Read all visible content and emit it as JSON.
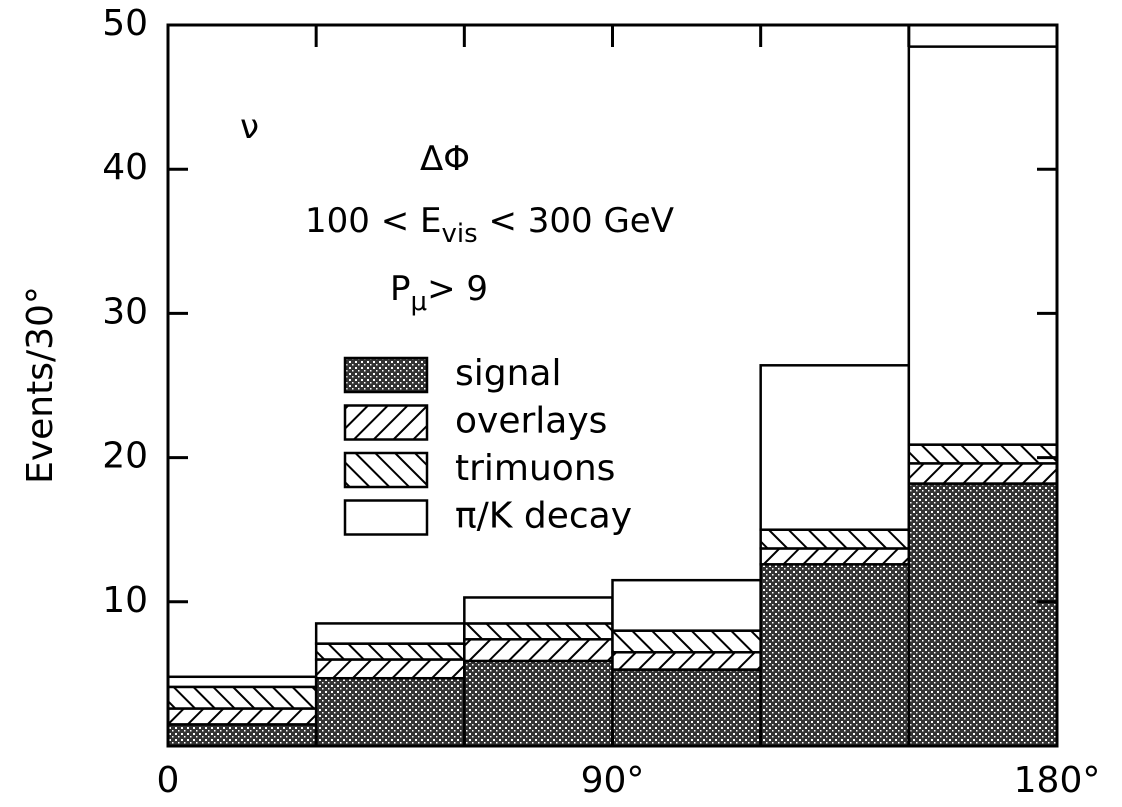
{
  "chart_data": {
    "type": "stacked-histogram",
    "ylabel": "Events/30°",
    "bins": [
      0,
      30,
      60,
      90,
      120,
      150,
      180
    ],
    "series": [
      {
        "name": "signal",
        "pattern": "crosshatch",
        "color": "#000000",
        "values": [
          1.5,
          4.7,
          5.9,
          5.3,
          12.6,
          18.2
        ]
      },
      {
        "name": "overlays",
        "pattern": "backslash",
        "color": "#000000",
        "values": [
          1.1,
          1.3,
          1.5,
          1.2,
          1.1,
          1.4
        ]
      },
      {
        "name": "trimuons",
        "pattern": "slash",
        "color": "#000000",
        "values": [
          1.5,
          1.1,
          1.1,
          1.5,
          1.3,
          1.3
        ]
      },
      {
        "name": "π/K decay",
        "pattern": "none",
        "color": "#000000",
        "values": [
          0.7,
          1.4,
          1.8,
          3.5,
          11.4,
          27.6
        ]
      }
    ],
    "xlim": [
      0,
      180
    ],
    "xticks": [
      0,
      {
        "value": 90,
        "label": "90°"
      },
      {
        "value": 180,
        "label": "180°"
      }
    ],
    "ylim": [
      0,
      50
    ],
    "yticks": [
      10,
      20,
      30,
      40,
      50
    ],
    "annotations": [
      {
        "text": "ν"
      },
      {
        "text": "ΔΦ"
      },
      {
        "text": "100  < E",
        "sub": "vis",
        "after": " < 300 GeV"
      },
      {
        "text": "P",
        "sub": "μ",
        "after": "> 9"
      }
    ]
  }
}
